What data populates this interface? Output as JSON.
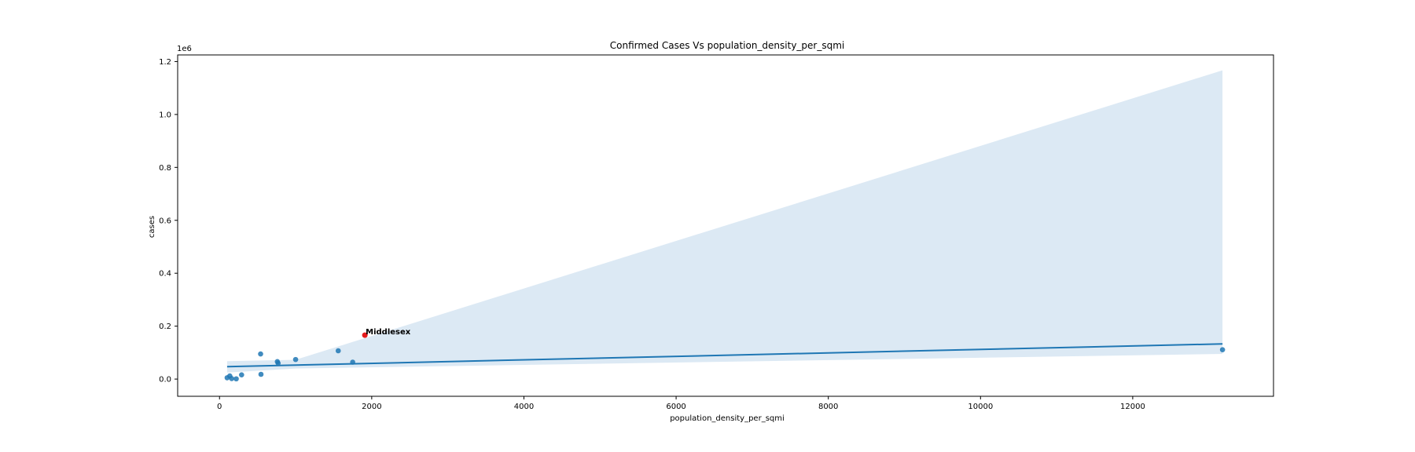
{
  "chart_data": {
    "type": "scatter",
    "title": "Confirmed Cases Vs population_density_per_sqmi",
    "xlabel": "population_density_per_sqmi",
    "ylabel": "cases",
    "y_offset_label": "1e6",
    "xlim": [
      -550,
      13850
    ],
    "ylim": [
      -0.065,
      1.225
    ],
    "x_ticks": [
      0,
      2000,
      4000,
      6000,
      8000,
      10000,
      12000
    ],
    "x_tick_labels": [
      "0",
      "2000",
      "4000",
      "6000",
      "8000",
      "10000",
      "12000"
    ],
    "y_ticks": [
      0.0,
      0.2,
      0.4,
      0.6,
      0.8,
      1.0,
      1.2
    ],
    "y_tick_labels": [
      "0.0",
      "0.2",
      "0.4",
      "0.6",
      "0.8",
      "1.0",
      "1.2"
    ],
    "grid": false,
    "colors": {
      "points": "#1f77b4",
      "regression_line": "#1f77b4",
      "confidence_band": "#dce9f4",
      "highlight": "#e41a1c"
    },
    "series": [
      {
        "values": [
          {
            "x": 100,
            "y": 0.005
          },
          {
            "x": 135,
            "y": 0.012
          },
          {
            "x": 160,
            "y": 0.002
          },
          {
            "x": 220,
            "y": 0.001
          },
          {
            "x": 290,
            "y": 0.016
          },
          {
            "x": 540,
            "y": 0.095
          },
          {
            "x": 545,
            "y": 0.018
          },
          {
            "x": 760,
            "y": 0.066
          },
          {
            "x": 770,
            "y": 0.06
          },
          {
            "x": 1000,
            "y": 0.074
          },
          {
            "x": 1560,
            "y": 0.107
          },
          {
            "x": 1750,
            "y": 0.064
          },
          {
            "x": 13180,
            "y": 0.111
          }
        ]
      }
    ],
    "highlight_point": {
      "x": 1910,
      "y": 0.166,
      "label": "Middlesex"
    },
    "regression": {
      "x": [
        100,
        13180
      ],
      "y": [
        0.047,
        0.133
      ]
    },
    "confidence_band": {
      "x": [
        100,
        1000,
        13180
      ],
      "upper": [
        0.068,
        0.073,
        1.167
      ],
      "lower": [
        0.025,
        0.04,
        0.095
      ]
    }
  }
}
